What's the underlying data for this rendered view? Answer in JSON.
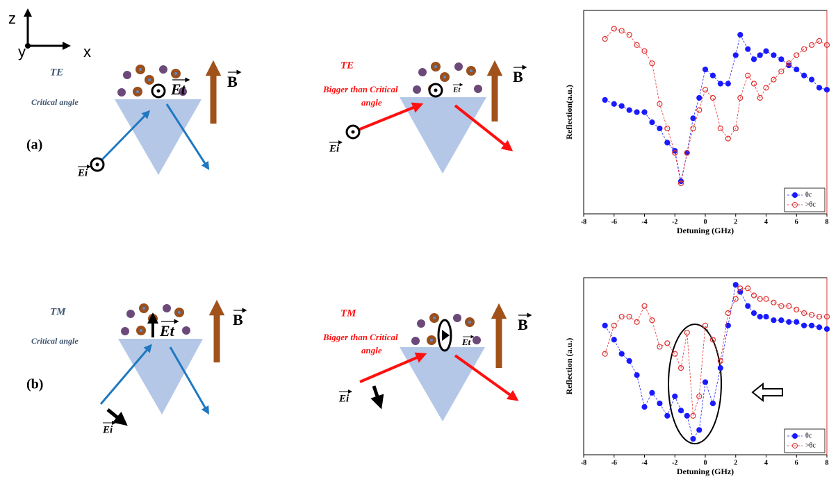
{
  "chart_data": [
    {
      "type": "line",
      "x_label": "Detuning (GHz)",
      "y_label": "Reflection(a.u.)",
      "x": [
        -6.6,
        -6,
        -5.5,
        -5,
        -4.5,
        -4,
        -3.5,
        -3,
        -2.5,
        -2,
        -1.6,
        -1.2,
        -0.8,
        -0.4,
        0,
        0.5,
        1,
        1.5,
        2,
        2.3,
        2.8,
        3.2,
        3.6,
        4,
        4.5,
        5,
        5.5,
        6,
        6.5,
        7,
        7.5,
        8
      ],
      "xlim": [
        -8,
        8
      ],
      "xticks": [
        -8,
        -6,
        -4,
        -2,
        0,
        2,
        4,
        6,
        8
      ],
      "ylim": [
        0,
        1
      ],
      "legend": "lower right",
      "series": [
        {
          "name": "θc",
          "color": "#1a1aff",
          "marker": "filled",
          "values": [
            0.56,
            0.54,
            0.53,
            0.51,
            0.5,
            0.5,
            0.45,
            0.42,
            0.35,
            0.31,
            0.16,
            0.3,
            0.47,
            0.57,
            0.71,
            0.68,
            0.64,
            0.64,
            0.78,
            0.88,
            0.81,
            0.76,
            0.78,
            0.8,
            0.78,
            0.76,
            0.73,
            0.71,
            0.68,
            0.66,
            0.62,
            0.61
          ]
        },
        {
          "name": ">θc",
          "color": "#e03030",
          "marker": "open",
          "values": [
            0.86,
            0.91,
            0.9,
            0.88,
            0.83,
            0.8,
            0.74,
            0.54,
            0.42,
            0.3,
            0.15,
            0.3,
            0.42,
            0.51,
            0.61,
            0.57,
            0.42,
            0.37,
            0.42,
            0.57,
            0.68,
            0.64,
            0.57,
            0.62,
            0.66,
            0.7,
            0.74,
            0.78,
            0.81,
            0.83,
            0.85,
            0.83
          ]
        }
      ]
    },
    {
      "type": "line",
      "x_label": "Detuning (GHz)",
      "y_label": "Reflection (a.u.)",
      "x": [
        -6.6,
        -6,
        -5.5,
        -5,
        -4.5,
        -4,
        -3.5,
        -3,
        -2.5,
        -2,
        -1.6,
        -1.2,
        -0.8,
        -0.4,
        0,
        0.5,
        1,
        1.5,
        2,
        2.3,
        2.8,
        3.2,
        3.6,
        4,
        4.5,
        5,
        5.5,
        6,
        6.5,
        7,
        7.5,
        8
      ],
      "xlim": [
        -8,
        8
      ],
      "xticks": [
        -8,
        -6,
        -4,
        -2,
        0,
        2,
        4,
        6,
        8
      ],
      "ylim": [
        0,
        1
      ],
      "legend": "lower right",
      "series": [
        {
          "name": "θc",
          "color": "#1a1aff",
          "marker": "filled",
          "values": [
            0.73,
            0.65,
            0.57,
            0.53,
            0.45,
            0.27,
            0.35,
            0.29,
            0.22,
            0.33,
            0.25,
            0.22,
            0.09,
            0.14,
            0.41,
            0.29,
            0.49,
            0.73,
            0.96,
            0.92,
            0.84,
            0.8,
            0.78,
            0.78,
            0.76,
            0.76,
            0.75,
            0.75,
            0.73,
            0.73,
            0.72,
            0.71
          ]
        },
        {
          "name": ">θc",
          "color": "#e03030",
          "marker": "open",
          "values": [
            0.57,
            0.73,
            0.78,
            0.78,
            0.75,
            0.84,
            0.76,
            0.61,
            0.63,
            0.57,
            0.49,
            0.69,
            0.22,
            0.33,
            0.73,
            0.65,
            0.53,
            0.8,
            0.88,
            0.94,
            0.94,
            0.9,
            0.88,
            0.88,
            0.86,
            0.84,
            0.84,
            0.82,
            0.8,
            0.79,
            0.78,
            0.78
          ]
        }
      ]
    }
  ],
  "figure": {
    "axes_labels": {
      "z": "z",
      "y": "y",
      "x": "x"
    },
    "panel_a": {
      "label": "(a)",
      "left": {
        "mode": "TE",
        "angle": "Critical angle",
        "Ei": "Ei",
        "Et": "Et",
        "B": "B"
      },
      "right": {
        "mode": "TE",
        "angle_line1": "Bigger than Critical",
        "angle_line2": "angle",
        "Ei": "Ei",
        "Et": "Et",
        "B": "B"
      }
    },
    "panel_b": {
      "label": "(b)",
      "left": {
        "mode": "TM",
        "angle": "Critical angle",
        "Ei": "Ei",
        "Et": "Et",
        "B": "B"
      },
      "right": {
        "mode": "TM",
        "angle_line1": "Bigger than Critical",
        "angle_line2": "angle",
        "Ei": "Ei",
        "Et": "Et",
        "B": "B"
      }
    }
  }
}
